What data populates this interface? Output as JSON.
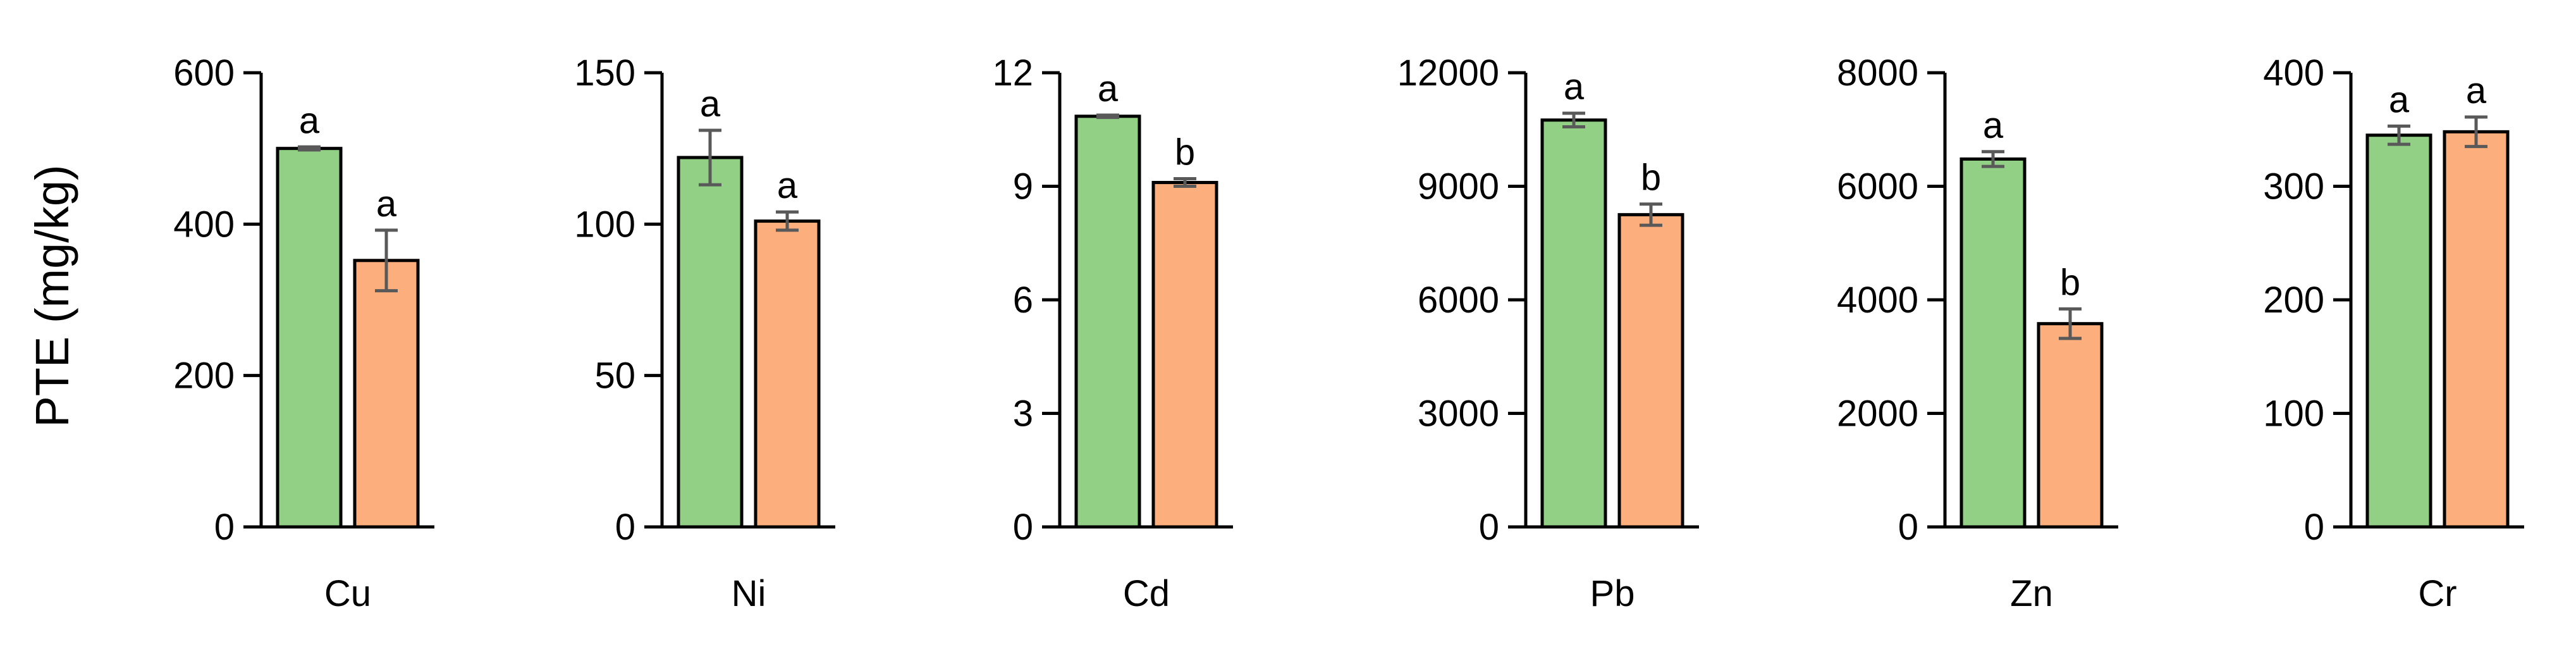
{
  "chart_data": {
    "type": "bar",
    "ylabel": "PTE (mg/kg)",
    "colors": {
      "series1": "#92D185",
      "series2": "#FCAF7C"
    },
    "panels": [
      {
        "category": "Cu",
        "ylim": [
          0,
          600
        ],
        "yticks": [
          "0",
          "200",
          "400",
          "600"
        ],
        "tick_values": [
          0,
          200,
          400,
          600
        ],
        "series": [
          {
            "value": 500,
            "error": 2,
            "sig": "a"
          },
          {
            "value": 352,
            "error": 40,
            "sig": "a"
          }
        ]
      },
      {
        "category": "Ni",
        "ylim": [
          0,
          150
        ],
        "yticks": [
          "0",
          "50",
          "100",
          "150"
        ],
        "tick_values": [
          0,
          50,
          100,
          150
        ],
        "series": [
          {
            "value": 122,
            "error": 9,
            "sig": "a"
          },
          {
            "value": 101,
            "error": 3,
            "sig": "a"
          }
        ]
      },
      {
        "category": "Cd",
        "ylim": [
          0,
          12
        ],
        "yticks": [
          "0",
          "3",
          "6",
          "9",
          "12"
        ],
        "tick_values": [
          0,
          3,
          6,
          9,
          12
        ],
        "series": [
          {
            "value": 10.85,
            "error": 0.03,
            "sig": "a"
          },
          {
            "value": 9.1,
            "error": 0.1,
            "sig": "b"
          }
        ]
      },
      {
        "category": "Pb",
        "ylim": [
          0,
          12000
        ],
        "yticks": [
          "0",
          "3000",
          "6000",
          "9000",
          "12000"
        ],
        "tick_values": [
          0,
          3000,
          6000,
          9000,
          12000
        ],
        "series": [
          {
            "value": 10750,
            "error": 180,
            "sig": "a"
          },
          {
            "value": 8250,
            "error": 280,
            "sig": "b"
          }
        ]
      },
      {
        "category": "Zn",
        "ylim": [
          0,
          8000
        ],
        "yticks": [
          "0",
          "2000",
          "4000",
          "6000",
          "8000"
        ],
        "tick_values": [
          0,
          2000,
          4000,
          6000,
          8000
        ],
        "series": [
          {
            "value": 6480,
            "error": 130,
            "sig": "a"
          },
          {
            "value": 3580,
            "error": 260,
            "sig": "b"
          }
        ]
      },
      {
        "category": "Cr",
        "ylim": [
          0,
          400
        ],
        "yticks": [
          "0",
          "100",
          "200",
          "300",
          "400"
        ],
        "tick_values": [
          0,
          100,
          200,
          300,
          400
        ],
        "series": [
          {
            "value": 345,
            "error": 8,
            "sig": "a"
          },
          {
            "value": 348,
            "error": 13,
            "sig": "a"
          }
        ]
      }
    ]
  }
}
